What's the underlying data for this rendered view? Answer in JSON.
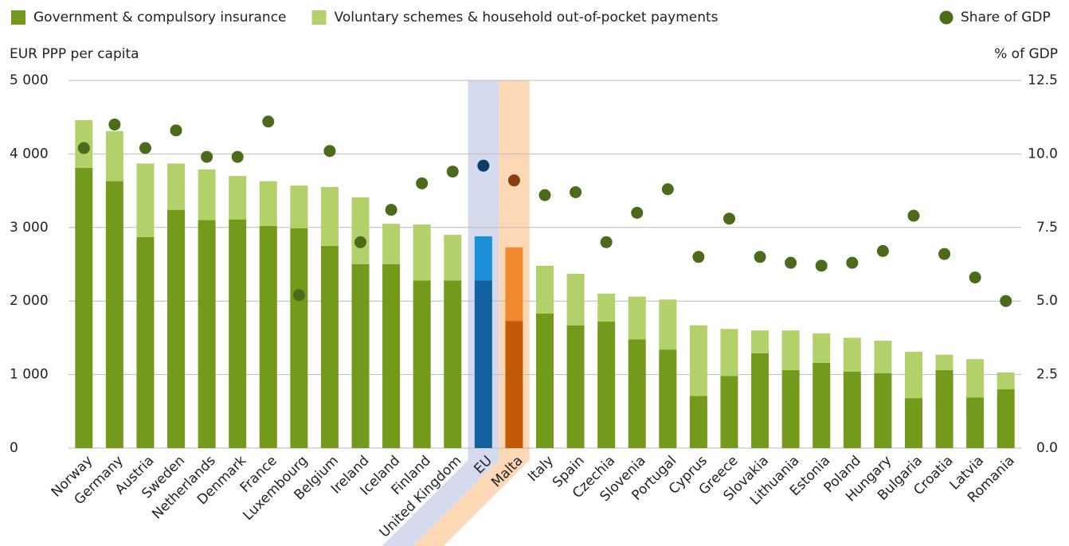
{
  "chart_data": {
    "type": "bar_dot",
    "y_label": "EUR PPP per capita",
    "y2_label": "% of GDP",
    "categories": [
      "Norway",
      "Germany",
      "Austria",
      "Sweden",
      "Netherlands",
      "Denmark",
      "France",
      "Luxembourg",
      "Belgium",
      "Ireland",
      "Iceland",
      "Finland",
      "United Kingdom",
      "EU",
      "Malta",
      "Italy",
      "Spain",
      "Czechia",
      "Slovenia",
      "Portugal",
      "Cyprus",
      "Greece",
      "Slovakia",
      "Lithuania",
      "Estonia",
      "Poland",
      "Hungary",
      "Bulgaria",
      "Croatia",
      "Latvia",
      "Romania"
    ],
    "series": [
      {
        "name": "Government & compulsory insurance",
        "color": "#739a1b",
        "values": [
          3810,
          3630,
          2870,
          3240,
          3100,
          3110,
          3020,
          2990,
          2750,
          2500,
          2500,
          2280,
          2280,
          2280,
          1730,
          1830,
          1670,
          1720,
          1480,
          1340,
          710,
          980,
          1290,
          1060,
          1160,
          1040,
          1020,
          680,
          1060,
          690,
          800
        ]
      },
      {
        "name": "Voluntary schemes & household out-of-pocket payments",
        "color": "#b3d06a",
        "values": [
          650,
          680,
          1000,
          630,
          690,
          590,
          610,
          580,
          800,
          910,
          550,
          760,
          620,
          600,
          1000,
          650,
          700,
          380,
          580,
          680,
          960,
          640,
          310,
          540,
          400,
          460,
          440,
          630,
          210,
          520,
          230
        ]
      },
      {
        "name": "Share of GDP",
        "color": "#4b6a1a",
        "axis": "y2",
        "values": [
          10.2,
          11.0,
          10.2,
          10.8,
          9.9,
          9.9,
          11.1,
          5.2,
          10.1,
          7.0,
          8.1,
          9.0,
          9.4,
          9.6,
          9.1,
          8.6,
          8.7,
          7.0,
          8.0,
          8.8,
          6.5,
          7.8,
          6.5,
          6.3,
          6.2,
          6.3,
          6.7,
          7.9,
          6.6,
          5.8,
          5.0
        ]
      }
    ],
    "highlights": {
      "EU": {
        "colors": [
          "#1261a0",
          "#1c8fd6",
          "#0a3e6a"
        ],
        "band_color": "#d4dbee"
      },
      "Malta": {
        "colors": [
          "#c35b06",
          "#ef8a2e",
          "#8a3f0b"
        ],
        "band_color": "#fdd8b7"
      }
    },
    "ylim": [
      0,
      5000
    ],
    "yticks": [
      0,
      {
        "value": 1000,
        "label": "1 000"
      },
      {
        "value": 2000,
        "label": "2 000"
      },
      {
        "value": 3000,
        "label": "3 000"
      },
      {
        "value": 4000,
        "label": "4 000"
      },
      {
        "value": 5000,
        "label": "5 000"
      }
    ],
    "y2lim": [
      0,
      12.5
    ],
    "y2ticks": [
      {
        "value": 0,
        "label": "0.0"
      },
      2.5,
      {
        "value": 5,
        "label": "5.0"
      },
      7.5,
      {
        "value": 10,
        "label": "10.0"
      },
      12.5
    ],
    "grid": true
  }
}
